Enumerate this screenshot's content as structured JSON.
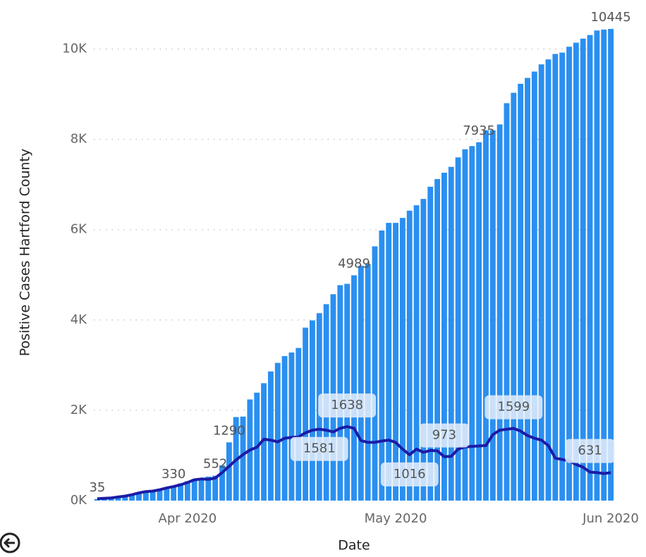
{
  "chart_data": {
    "type": "bar-line",
    "x_label": "Date",
    "y_label": "Positive Cases Hartford County",
    "categories": [
      null,
      null,
      null,
      null,
      null,
      null,
      null,
      null,
      null,
      null,
      null,
      null,
      null,
      "Apr 2020",
      null,
      null,
      null,
      null,
      null,
      null,
      null,
      null,
      null,
      null,
      null,
      null,
      null,
      null,
      null,
      null,
      null,
      null,
      null,
      null,
      null,
      null,
      null,
      null,
      null,
      null,
      null,
      null,
      null,
      "May 2020",
      null,
      null,
      null,
      null,
      null,
      null,
      null,
      null,
      null,
      null,
      null,
      null,
      null,
      null,
      null,
      null,
      null,
      null,
      null,
      null,
      null,
      null,
      null,
      null,
      null,
      null,
      null,
      null,
      null,
      null,
      "Jun 2020"
    ],
    "series": [
      {
        "kind": "bar",
        "color": "#2a8ff0",
        "values": [
          35,
          45,
          60,
          80,
          100,
          125,
          150,
          180,
          215,
          250,
          290,
          330,
          380,
          430,
          480,
          500,
          530,
          552,
          780,
          1290,
          1850,
          1860,
          2240,
          2390,
          2600,
          2860,
          3050,
          3200,
          3280,
          3380,
          3830,
          3990,
          4150,
          4350,
          4570,
          4770,
          4800,
          4989,
          5200,
          5240,
          5630,
          5980,
          6150,
          6150,
          6260,
          6420,
          6540,
          6680,
          6950,
          7120,
          7260,
          7390,
          7600,
          7780,
          7850,
          7935,
          8200,
          8200,
          8330,
          8800,
          9030,
          9230,
          9360,
          9500,
          9660,
          9770,
          9890,
          9920,
          10050,
          10140,
          10230,
          10310,
          10410,
          10430,
          10445
        ],
        "value_labels": [
          "35",
          null,
          null,
          null,
          null,
          null,
          null,
          null,
          null,
          null,
          null,
          "330",
          null,
          null,
          null,
          null,
          null,
          "552",
          null,
          "1290",
          null,
          null,
          null,
          null,
          null,
          null,
          null,
          null,
          null,
          null,
          null,
          null,
          null,
          null,
          null,
          null,
          null,
          "4989",
          null,
          null,
          null,
          null,
          null,
          null,
          null,
          null,
          null,
          null,
          null,
          null,
          null,
          null,
          null,
          null,
          null,
          "7935",
          null,
          null,
          null,
          null,
          null,
          null,
          null,
          null,
          null,
          null,
          null,
          null,
          null,
          null,
          null,
          null,
          null,
          null,
          "10445"
        ]
      },
      {
        "kind": "line",
        "color": "#1c1ca6",
        "values": [
          40,
          50,
          60,
          80,
          100,
          130,
          170,
          200,
          210,
          240,
          280,
          310,
          350,
          400,
          460,
          480,
          470,
          500,
          620,
          760,
          900,
          1020,
          1120,
          1180,
          1360,
          1340,
          1300,
          1380,
          1400,
          1410,
          1500,
          1560,
          1581,
          1560,
          1520,
          1600,
          1638,
          1600,
          1330,
          1290,
          1290,
          1320,
          1340,
          1290,
          1140,
          1016,
          1140,
          1070,
          1110,
          1100,
          973,
          980,
          1140,
          1190,
          1200,
          1210,
          1220,
          1460,
          1560,
          1580,
          1599,
          1540,
          1440,
          1380,
          1340,
          1220,
          940,
          910,
          880,
          800,
          740,
          631,
          620,
          600,
          620
        ],
        "value_labels": [
          null,
          null,
          null,
          null,
          null,
          null,
          null,
          null,
          null,
          null,
          null,
          null,
          null,
          null,
          null,
          null,
          null,
          null,
          null,
          null,
          null,
          null,
          null,
          null,
          null,
          null,
          null,
          null,
          null,
          null,
          null,
          null,
          "1581",
          null,
          null,
          null,
          "1638",
          null,
          null,
          null,
          null,
          null,
          null,
          null,
          null,
          "1016",
          null,
          null,
          null,
          null,
          "973",
          null,
          null,
          null,
          null,
          null,
          null,
          null,
          null,
          null,
          "1599",
          null,
          null,
          null,
          null,
          null,
          null,
          null,
          null,
          null,
          null,
          "631",
          null,
          null,
          null
        ]
      }
    ],
    "ylim": [
      0,
      10445
    ],
    "yticks": [
      {
        "value": 0,
        "label": "0K"
      },
      {
        "value": 2000,
        "label": "2K"
      },
      {
        "value": 4000,
        "label": "4K"
      },
      {
        "value": 6000,
        "label": "6K"
      },
      {
        "value": 8000,
        "label": "8K"
      },
      {
        "value": 10000,
        "label": "10K"
      }
    ],
    "grid": true
  }
}
